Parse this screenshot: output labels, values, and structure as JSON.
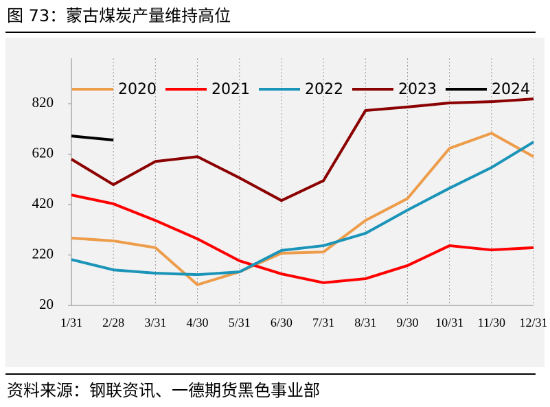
{
  "title": "图 73：蒙古煤炭产量维持高位",
  "source": "资料来源：钢联资讯、一德期货黑色事业部",
  "chart_data": {
    "type": "line",
    "categories": [
      "1/31",
      "2/28",
      "3/31",
      "4/30",
      "5/31",
      "6/30",
      "7/31",
      "8/31",
      "9/30",
      "10/31",
      "11/30",
      "12/31"
    ],
    "series": [
      {
        "name": "2020",
        "color": "#ed9c4a",
        "values": [
          287,
          276,
          249,
          102,
          153,
          227,
          232,
          357,
          444,
          643,
          703,
          610
        ]
      },
      {
        "name": "2021",
        "color": "#ff0000",
        "values": [
          458,
          423,
          357,
          284,
          197,
          145,
          110,
          126,
          178,
          257,
          240,
          249
        ]
      },
      {
        "name": "2022",
        "color": "#1a94b8",
        "values": [
          202,
          161,
          148,
          142,
          153,
          238,
          257,
          306,
          398,
          485,
          567,
          668
        ]
      },
      {
        "name": "2023",
        "color": "#8b0000",
        "values": [
          600,
          499,
          591,
          610,
          526,
          436,
          515,
          793,
          807,
          823,
          828,
          839
        ]
      },
      {
        "name": "2024",
        "color": "#000000",
        "values": [
          692,
          676,
          null,
          null,
          null,
          null,
          null,
          null,
          null,
          null,
          null,
          null
        ]
      }
    ],
    "ylim": [
      20,
      1000
    ],
    "yticks": [
      20,
      220,
      420,
      620,
      820
    ],
    "grid": true,
    "legend": "top"
  }
}
